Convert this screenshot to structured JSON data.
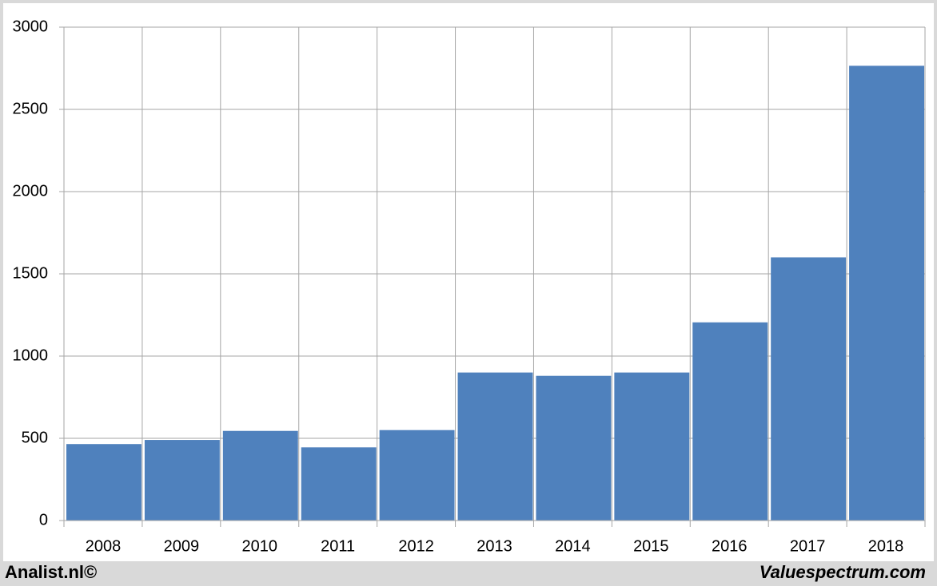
{
  "chart_data": {
    "type": "bar",
    "categories": [
      "2008",
      "2009",
      "2010",
      "2011",
      "2012",
      "2013",
      "2014",
      "2015",
      "2016",
      "2017",
      "2018"
    ],
    "values": [
      465,
      490,
      545,
      445,
      550,
      900,
      880,
      900,
      1205,
      1600,
      2765
    ],
    "color": "#4f81bd",
    "ylim": [
      0,
      3000
    ],
    "yticks": [
      0,
      500,
      1000,
      1500,
      2000,
      2500,
      3000
    ],
    "grid": true
  },
  "footer": {
    "left": "Analist.nl©",
    "right": "Valuespectrum.com"
  }
}
